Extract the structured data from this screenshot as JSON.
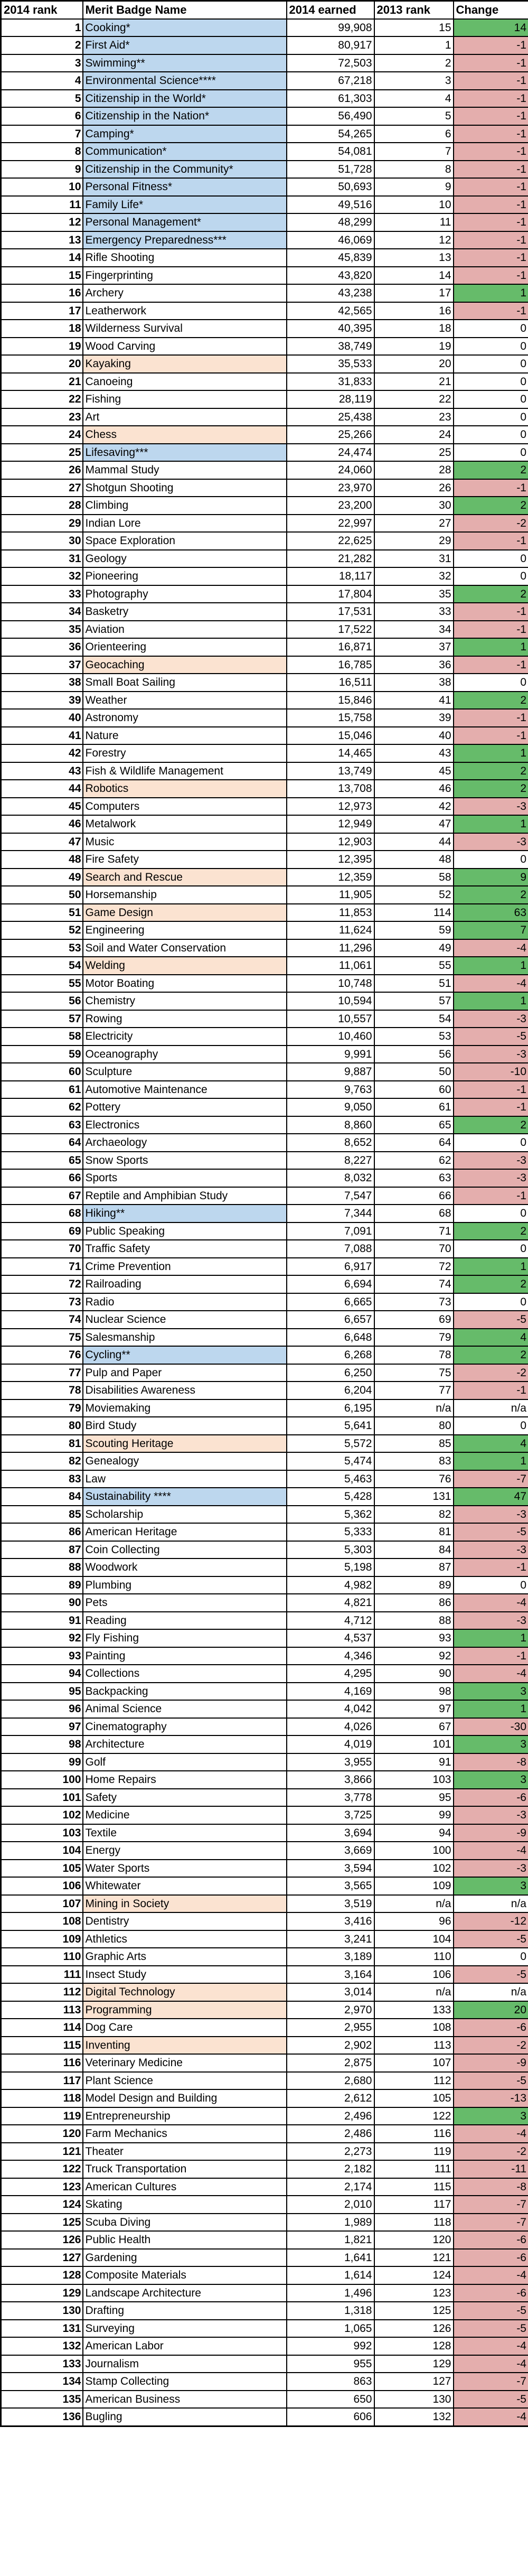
{
  "chart_data": {
    "type": "table",
    "title": "Merit badge ranking table: 2014 rank vs 2013 rank with change",
    "columns": [
      "2014 rank",
      "Merit Badge Name",
      "2014 earned",
      "2013 rank",
      "Change"
    ],
    "row_fields": [
      "rank2014",
      "name",
      "earned2014",
      "rank2013",
      "change",
      "name_highlight"
    ],
    "rows": [
      [
        "1",
        "Cooking*",
        "99,908",
        "15",
        "14",
        "blue"
      ],
      [
        "2",
        "First Aid*",
        "80,917",
        "1",
        "-1",
        "blue"
      ],
      [
        "3",
        "Swimming**",
        "72,503",
        "2",
        "-1",
        "blue"
      ],
      [
        "4",
        "Environmental Science****",
        "67,218",
        "3",
        "-1",
        "blue"
      ],
      [
        "5",
        "Citizenship in the World*",
        "61,303",
        "4",
        "-1",
        "blue"
      ],
      [
        "6",
        "Citizenship in the Nation*",
        "56,490",
        "5",
        "-1",
        "blue"
      ],
      [
        "7",
        "Camping*",
        "54,265",
        "6",
        "-1",
        "blue"
      ],
      [
        "8",
        "Communication*",
        "54,081",
        "7",
        "-1",
        "blue"
      ],
      [
        "9",
        "Citizenship in the Community*",
        "51,728",
        "8",
        "-1",
        "blue"
      ],
      [
        "10",
        "Personal Fitness*",
        "50,693",
        "9",
        "-1",
        "blue"
      ],
      [
        "11",
        "Family Life*",
        "49,516",
        "10",
        "-1",
        "blue"
      ],
      [
        "12",
        "Personal Management*",
        "48,299",
        "11",
        "-1",
        "blue"
      ],
      [
        "13",
        "Emergency Preparedness***",
        "46,069",
        "12",
        "-1",
        "blue"
      ],
      [
        "14",
        "Rifle Shooting",
        "45,839",
        "13",
        "-1",
        ""
      ],
      [
        "15",
        "Fingerprinting",
        "43,820",
        "14",
        "-1",
        ""
      ],
      [
        "16",
        "Archery",
        "43,238",
        "17",
        "1",
        ""
      ],
      [
        "17",
        "Leatherwork",
        "42,565",
        "16",
        "-1",
        ""
      ],
      [
        "18",
        "Wilderness Survival",
        "40,395",
        "18",
        "0",
        ""
      ],
      [
        "19",
        "Wood Carving",
        "38,749",
        "19",
        "0",
        ""
      ],
      [
        "20",
        "Kayaking",
        "35,533",
        "20",
        "0",
        "orange"
      ],
      [
        "21",
        "Canoeing",
        "31,833",
        "21",
        "0",
        ""
      ],
      [
        "22",
        "Fishing",
        "28,119",
        "22",
        "0",
        ""
      ],
      [
        "23",
        "Art",
        "25,438",
        "23",
        "0",
        ""
      ],
      [
        "24",
        "Chess",
        "25,266",
        "24",
        "0",
        "orange"
      ],
      [
        "25",
        "Lifesaving***",
        "24,474",
        "25",
        "0",
        "blue"
      ],
      [
        "26",
        "Mammal Study",
        "24,060",
        "28",
        "2",
        ""
      ],
      [
        "27",
        "Shotgun Shooting",
        "23,970",
        "26",
        "-1",
        ""
      ],
      [
        "28",
        "Climbing",
        "23,200",
        "30",
        "2",
        ""
      ],
      [
        "29",
        "Indian Lore",
        "22,997",
        "27",
        "-2",
        ""
      ],
      [
        "30",
        "Space Exploration",
        "22,625",
        "29",
        "-1",
        ""
      ],
      [
        "31",
        "Geology",
        "21,282",
        "31",
        "0",
        ""
      ],
      [
        "32",
        "Pioneering",
        "18,117",
        "32",
        "0",
        ""
      ],
      [
        "33",
        "Photography",
        "17,804",
        "35",
        "2",
        ""
      ],
      [
        "34",
        "Basketry",
        "17,531",
        "33",
        "-1",
        ""
      ],
      [
        "35",
        "Aviation",
        "17,522",
        "34",
        "-1",
        ""
      ],
      [
        "36",
        "Orienteering",
        "16,871",
        "37",
        "1",
        ""
      ],
      [
        "37",
        "Geocaching",
        "16,785",
        "36",
        "-1",
        "orange"
      ],
      [
        "38",
        "Small Boat Sailing",
        "16,511",
        "38",
        "0",
        ""
      ],
      [
        "39",
        "Weather",
        "15,846",
        "41",
        "2",
        ""
      ],
      [
        "40",
        "Astronomy",
        "15,758",
        "39",
        "-1",
        ""
      ],
      [
        "41",
        "Nature",
        "15,046",
        "40",
        "-1",
        ""
      ],
      [
        "42",
        "Forestry",
        "14,465",
        "43",
        "1",
        ""
      ],
      [
        "43",
        "Fish & Wildlife Management",
        "13,749",
        "45",
        "2",
        ""
      ],
      [
        "44",
        "Robotics",
        "13,708",
        "46",
        "2",
        "orange"
      ],
      [
        "45",
        "Computers",
        "12,973",
        "42",
        "-3",
        ""
      ],
      [
        "46",
        "Metalwork",
        "12,949",
        "47",
        "1",
        ""
      ],
      [
        "47",
        "Music",
        "12,903",
        "44",
        "-3",
        ""
      ],
      [
        "48",
        "Fire Safety",
        "12,395",
        "48",
        "0",
        ""
      ],
      [
        "49",
        "Search and Rescue",
        "12,359",
        "58",
        "9",
        "orange"
      ],
      [
        "50",
        "Horsemanship",
        "11,905",
        "52",
        "2",
        ""
      ],
      [
        "51",
        "Game Design",
        "11,853",
        "114",
        "63",
        "orange"
      ],
      [
        "52",
        "Engineering",
        "11,624",
        "59",
        "7",
        ""
      ],
      [
        "53",
        "Soil and Water Conservation",
        "11,296",
        "49",
        "-4",
        ""
      ],
      [
        "54",
        "Welding",
        "11,061",
        "55",
        "1",
        "orange"
      ],
      [
        "55",
        "Motor Boating",
        "10,748",
        "51",
        "-4",
        ""
      ],
      [
        "56",
        "Chemistry",
        "10,594",
        "57",
        "1",
        ""
      ],
      [
        "57",
        "Rowing",
        "10,557",
        "54",
        "-3",
        ""
      ],
      [
        "58",
        "Electricity",
        "10,460",
        "53",
        "-5",
        ""
      ],
      [
        "59",
        "Oceanography",
        "9,991",
        "56",
        "-3",
        ""
      ],
      [
        "60",
        "Sculpture",
        "9,887",
        "50",
        "-10",
        ""
      ],
      [
        "61",
        "Automotive Maintenance",
        "9,763",
        "60",
        "-1",
        ""
      ],
      [
        "62",
        "Pottery",
        "9,050",
        "61",
        "-1",
        ""
      ],
      [
        "63",
        "Electronics",
        "8,860",
        "65",
        "2",
        ""
      ],
      [
        "64",
        "Archaeology",
        "8,652",
        "64",
        "0",
        ""
      ],
      [
        "65",
        "Snow Sports",
        "8,227",
        "62",
        "-3",
        ""
      ],
      [
        "66",
        "Sports",
        "8,032",
        "63",
        "-3",
        ""
      ],
      [
        "67",
        "Reptile and Amphibian Study",
        "7,547",
        "66",
        "-1",
        ""
      ],
      [
        "68",
        "Hiking**",
        "7,344",
        "68",
        "0",
        "blue"
      ],
      [
        "69",
        "Public Speaking",
        "7,091",
        "71",
        "2",
        ""
      ],
      [
        "70",
        "Traffic Safety",
        "7,088",
        "70",
        "0",
        ""
      ],
      [
        "71",
        "Crime Prevention",
        "6,917",
        "72",
        "1",
        ""
      ],
      [
        "72",
        "Railroading",
        "6,694",
        "74",
        "2",
        ""
      ],
      [
        "73",
        "Radio",
        "6,665",
        "73",
        "0",
        ""
      ],
      [
        "74",
        "Nuclear Science",
        "6,657",
        "69",
        "-5",
        ""
      ],
      [
        "75",
        "Salesmanship",
        "6,648",
        "79",
        "4",
        ""
      ],
      [
        "76",
        "Cycling**",
        "6,268",
        "78",
        "2",
        "blue"
      ],
      [
        "77",
        "Pulp and Paper",
        "6,250",
        "75",
        "-2",
        ""
      ],
      [
        "78",
        "Disabilities Awareness",
        "6,204",
        "77",
        "-1",
        ""
      ],
      [
        "79",
        "Moviemaking",
        "6,195",
        "n/a",
        "n/a",
        ""
      ],
      [
        "80",
        "Bird Study",
        "5,641",
        "80",
        "0",
        ""
      ],
      [
        "81",
        "Scouting Heritage",
        "5,572",
        "85",
        "4",
        "orange"
      ],
      [
        "82",
        "Genealogy",
        "5,474",
        "83",
        "1",
        ""
      ],
      [
        "83",
        "Law",
        "5,463",
        "76",
        "-7",
        ""
      ],
      [
        "84",
        "Sustainability ****",
        "5,428",
        "131",
        "47",
        "blue"
      ],
      [
        "85",
        "Scholarship",
        "5,362",
        "82",
        "-3",
        ""
      ],
      [
        "86",
        "American Heritage",
        "5,333",
        "81",
        "-5",
        ""
      ],
      [
        "87",
        "Coin Collecting",
        "5,303",
        "84",
        "-3",
        ""
      ],
      [
        "88",
        "Woodwork",
        "5,198",
        "87",
        "-1",
        ""
      ],
      [
        "89",
        "Plumbing",
        "4,982",
        "89",
        "0",
        ""
      ],
      [
        "90",
        "Pets",
        "4,821",
        "86",
        "-4",
        ""
      ],
      [
        "91",
        "Reading",
        "4,712",
        "88",
        "-3",
        ""
      ],
      [
        "92",
        "Fly Fishing",
        "4,537",
        "93",
        "1",
        ""
      ],
      [
        "93",
        "Painting",
        "4,346",
        "92",
        "-1",
        ""
      ],
      [
        "94",
        "Collections",
        "4,295",
        "90",
        "-4",
        ""
      ],
      [
        "95",
        "Backpacking",
        "4,169",
        "98",
        "3",
        ""
      ],
      [
        "96",
        "Animal Science",
        "4,042",
        "97",
        "1",
        ""
      ],
      [
        "97",
        "Cinematography",
        "4,026",
        "67",
        "-30",
        ""
      ],
      [
        "98",
        "Architecture",
        "4,019",
        "101",
        "3",
        ""
      ],
      [
        "99",
        "Golf",
        "3,955",
        "91",
        "-8",
        ""
      ],
      [
        "100",
        "Home Repairs",
        "3,866",
        "103",
        "3",
        ""
      ],
      [
        "101",
        "Safety",
        "3,778",
        "95",
        "-6",
        ""
      ],
      [
        "102",
        "Medicine",
        "3,725",
        "99",
        "-3",
        ""
      ],
      [
        "103",
        "Textile",
        "3,694",
        "94",
        "-9",
        ""
      ],
      [
        "104",
        "Energy",
        "3,669",
        "100",
        "-4",
        ""
      ],
      [
        "105",
        "Water Sports",
        "3,594",
        "102",
        "-3",
        ""
      ],
      [
        "106",
        "Whitewater",
        "3,565",
        "109",
        "3",
        ""
      ],
      [
        "107",
        "Mining in Society",
        "3,519",
        "n/a",
        "n/a",
        "orange"
      ],
      [
        "108",
        "Dentistry",
        "3,416",
        "96",
        "-12",
        ""
      ],
      [
        "109",
        "Athletics",
        "3,241",
        "104",
        "-5",
        ""
      ],
      [
        "110",
        "Graphic Arts",
        "3,189",
        "110",
        "0",
        ""
      ],
      [
        "111",
        "Insect Study",
        "3,164",
        "106",
        "-5",
        ""
      ],
      [
        "112",
        "Digital Technology",
        "3,014",
        "n/a",
        "n/a",
        "orange"
      ],
      [
        "113",
        "Programming",
        "2,970",
        "133",
        "20",
        "orange"
      ],
      [
        "114",
        "Dog Care",
        "2,955",
        "108",
        "-6",
        ""
      ],
      [
        "115",
        "Inventing",
        "2,902",
        "113",
        "-2",
        "orange"
      ],
      [
        "116",
        "Veterinary Medicine",
        "2,875",
        "107",
        "-9",
        ""
      ],
      [
        "117",
        "Plant Science",
        "2,680",
        "112",
        "-5",
        ""
      ],
      [
        "118",
        "Model Design and Building",
        "2,612",
        "105",
        "-13",
        ""
      ],
      [
        "119",
        "Entrepreneurship",
        "2,496",
        "122",
        "3",
        ""
      ],
      [
        "120",
        "Farm Mechanics",
        "2,486",
        "116",
        "-4",
        ""
      ],
      [
        "121",
        "Theater",
        "2,273",
        "119",
        "-2",
        ""
      ],
      [
        "122",
        "Truck Transportation",
        "2,182",
        "111",
        "-11",
        ""
      ],
      [
        "123",
        "American Cultures",
        "2,174",
        "115",
        "-8",
        ""
      ],
      [
        "124",
        "Skating",
        "2,010",
        "117",
        "-7",
        ""
      ],
      [
        "125",
        "Scuba Diving",
        "1,989",
        "118",
        "-7",
        ""
      ],
      [
        "126",
        "Public Health",
        "1,821",
        "120",
        "-6",
        ""
      ],
      [
        "127",
        "Gardening",
        "1,641",
        "121",
        "-6",
        ""
      ],
      [
        "128",
        "Composite Materials",
        "1,614",
        "124",
        "-4",
        ""
      ],
      [
        "129",
        "Landscape Architecture",
        "1,496",
        "123",
        "-6",
        ""
      ],
      [
        "130",
        "Drafting",
        "1,318",
        "125",
        "-5",
        ""
      ],
      [
        "131",
        "Surveying",
        "1,065",
        "126",
        "-5",
        ""
      ],
      [
        "132",
        "American Labor",
        "992",
        "128",
        "-4",
        ""
      ],
      [
        "133",
        "Journalism",
        "955",
        "129",
        "-4",
        ""
      ],
      [
        "134",
        "Stamp Collecting",
        "863",
        "127",
        "-7",
        ""
      ],
      [
        "135",
        "American Business",
        "650",
        "130",
        "-5",
        ""
      ],
      [
        "136",
        "Bugling",
        "606",
        "132",
        "-4",
        ""
      ]
    ]
  },
  "colors": {
    "blue_highlight": "#BDD7EE",
    "orange_highlight": "#FBE3D1",
    "green_change": "#66BB6A",
    "red_change": "#E4AEAD",
    "border": "#000000"
  }
}
